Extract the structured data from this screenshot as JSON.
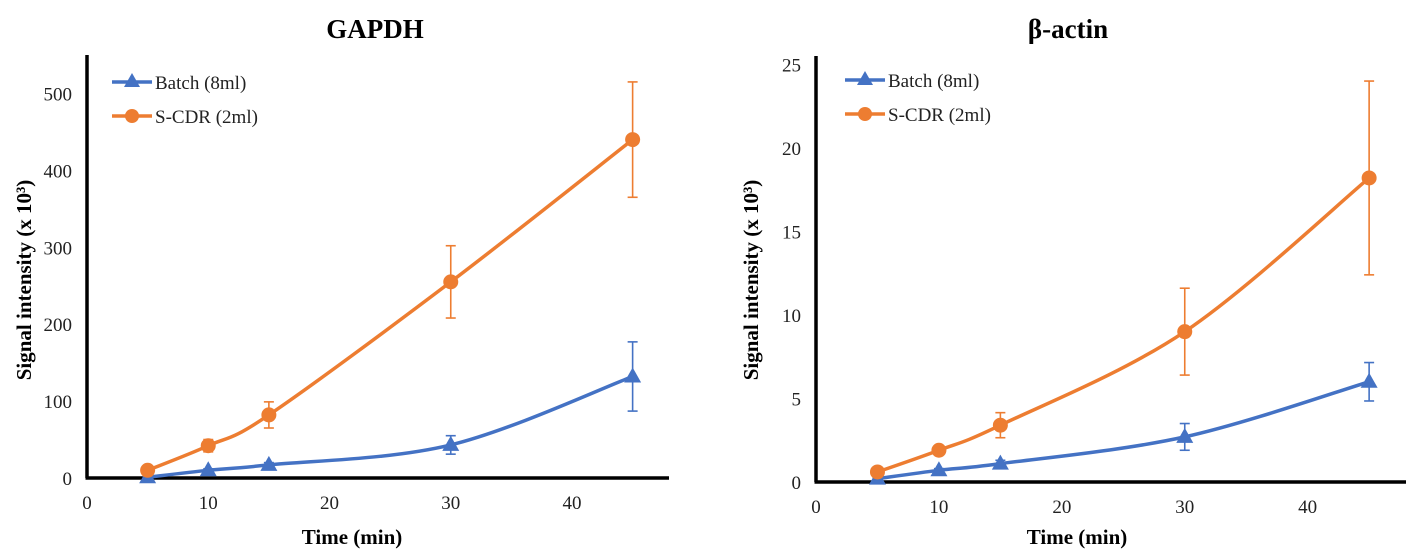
{
  "colors": {
    "batch": "#4472C4",
    "scdr": "#ED7D31"
  },
  "chart_data": [
    {
      "type": "line",
      "title": "GAPDH",
      "xlabel": "Time (min)",
      "ylabel": "Signal intensity (x 10³)",
      "xlim": [
        0,
        48
      ],
      "ylim": [
        0,
        550
      ],
      "xticks": [
        0,
        10,
        20,
        30,
        40
      ],
      "yticks": [
        0,
        100,
        200,
        300,
        400,
        500
      ],
      "grid": false,
      "legend_position": "top-left",
      "x": [
        5,
        10,
        15,
        30,
        45
      ],
      "series": [
        {
          "name": "Batch (8ml)",
          "marker": "triangle",
          "values": [
            1,
            10,
            17,
            43,
            132
          ],
          "errors": [
            1,
            2,
            3,
            12,
            45
          ]
        },
        {
          "name": "S-CDR (2ml)",
          "marker": "circle",
          "values": [
            10,
            42,
            82,
            255,
            440
          ],
          "errors": [
            2,
            8,
            17,
            47,
            75
          ]
        }
      ]
    },
    {
      "type": "line",
      "title": "β-actin",
      "xlabel": "Time (min)",
      "ylabel": "Signal intensity (x 10³)",
      "xlim": [
        0,
        48
      ],
      "ylim": [
        0,
        25.5
      ],
      "xticks": [
        0,
        10,
        20,
        30,
        40
      ],
      "yticks": [
        0,
        5,
        10,
        15,
        20,
        25
      ],
      "grid": false,
      "legend_position": "top-left",
      "x": [
        5,
        10,
        15,
        30,
        45
      ],
      "series": [
        {
          "name": "Batch (8ml)",
          "marker": "triangle",
          "values": [
            0.2,
            0.7,
            1.1,
            2.7,
            6.0
          ],
          "errors": [
            0.05,
            0.1,
            0.2,
            0.8,
            1.15
          ]
        },
        {
          "name": "S-CDR (2ml)",
          "marker": "circle",
          "values": [
            0.6,
            1.9,
            3.4,
            9.0,
            18.2
          ],
          "errors": [
            0.1,
            0.15,
            0.75,
            2.6,
            5.8
          ]
        }
      ]
    }
  ]
}
